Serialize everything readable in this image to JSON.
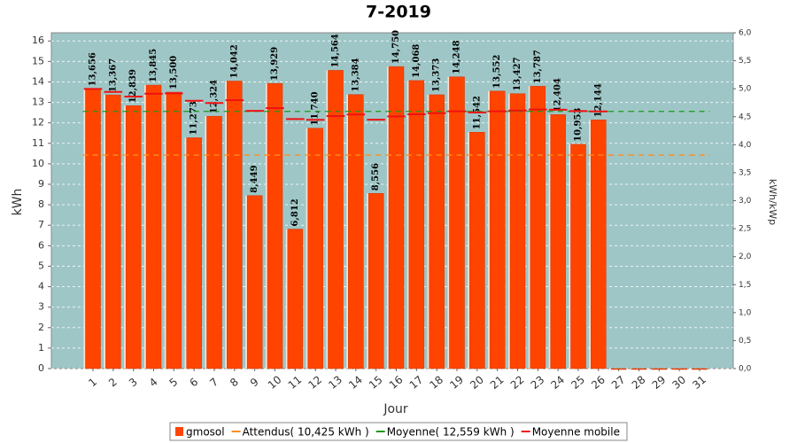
{
  "chart_data": {
    "type": "bar",
    "title": "7-2019",
    "x_label": "Jour",
    "y_label": "kWh",
    "y2_label": "kWh/kWp",
    "categories": [
      "1",
      "2",
      "3",
      "4",
      "5",
      "6",
      "7",
      "8",
      "9",
      "10",
      "11",
      "12",
      "13",
      "14",
      "15",
      "16",
      "17",
      "18",
      "19",
      "20",
      "21",
      "22",
      "23",
      "24",
      "25",
      "26",
      "27",
      "28",
      "29",
      "30",
      "31"
    ],
    "series": [
      {
        "name": "gmosol",
        "type": "bar",
        "color": "#ff4400",
        "values": [
          13.656,
          13.367,
          12.839,
          13.845,
          13.5,
          11.273,
          12.324,
          14.042,
          8.449,
          13.929,
          6.812,
          11.74,
          14.564,
          13.384,
          8.556,
          14.75,
          14.068,
          13.373,
          14.248,
          11.542,
          13.552,
          13.427,
          13.787,
          12.404,
          10.953,
          12.144,
          0,
          0,
          0,
          0,
          0
        ],
        "value_labels": [
          "13,656",
          "13,367",
          "12,839",
          "13,845",
          "13,500",
          "11,273",
          "12,324",
          "14,042",
          "8,449",
          "13,929",
          "6,812",
          "11,740",
          "14,564",
          "13,384",
          "8,556",
          "14,750",
          "14,068",
          "13,373",
          "14,248",
          "11,542",
          "13,552",
          "13,427",
          "13,787",
          "12,404",
          "10,953",
          "12,144",
          null,
          null,
          null,
          null,
          null
        ]
      },
      {
        "name": "Attendus( 10,425 kWh )",
        "type": "dash",
        "color": "#ff8c1a",
        "values": [
          10.425,
          10.425,
          10.425,
          10.425,
          10.425,
          10.425,
          10.425,
          10.425,
          10.425,
          10.425,
          10.425,
          10.425,
          10.425,
          10.425,
          10.425,
          10.425,
          10.425,
          10.425,
          10.425,
          10.425,
          10.425,
          10.425,
          10.425,
          10.425,
          10.425,
          10.425,
          10.425,
          10.425,
          10.425,
          10.425,
          10.425
        ]
      },
      {
        "name": "Moyenne( 12,559 kWh )",
        "type": "dash",
        "color": "#1a9a1a",
        "values": [
          12.559,
          12.559,
          12.559,
          12.559,
          12.559,
          12.559,
          12.559,
          12.559,
          12.559,
          12.559,
          12.559,
          12.559,
          12.559,
          12.559,
          12.559,
          12.559,
          12.559,
          12.559,
          12.559,
          12.559,
          12.559,
          12.559,
          12.559,
          12.559,
          12.559,
          12.559,
          12.559,
          12.559,
          12.559,
          12.559,
          12.559
        ]
      },
      {
        "name": "Moyenne mobile",
        "type": "step",
        "color": "#ee1111",
        "values": [
          13.656,
          13.512,
          13.287,
          13.427,
          13.441,
          13.08,
          12.972,
          13.106,
          12.588,
          12.722,
          12.185,
          12.148,
          12.334,
          12.409,
          12.152,
          12.314,
          12.418,
          12.471,
          12.564,
          12.513,
          12.563,
          12.602,
          12.653,
          12.643,
          12.575,
          12.559,
          null,
          null,
          null,
          null,
          null
        ]
      }
    ],
    "ylim": [
      0,
      16.4
    ],
    "yticks": [
      0,
      1,
      2,
      3,
      4,
      5,
      6,
      7,
      8,
      9,
      10,
      11,
      12,
      13,
      14,
      15,
      16
    ],
    "y2lim": [
      0,
      6
    ],
    "y2ticks": [
      {
        "value": 0,
        "label": "0,0"
      },
      {
        "value": 0.5,
        "label": "0,5"
      },
      {
        "value": 1,
        "label": "1,0"
      },
      {
        "value": 1.5,
        "label": "1,5"
      },
      {
        "value": 2,
        "label": "2,0"
      },
      {
        "value": 2.5,
        "label": "2,5"
      },
      {
        "value": 3,
        "label": "3,0"
      },
      {
        "value": 3.5,
        "label": "3,5"
      },
      {
        "value": 4,
        "label": "4,0"
      },
      {
        "value": 4.5,
        "label": "4,5"
      },
      {
        "value": 5,
        "label": "5,0"
      },
      {
        "value": 5.5,
        "label": "5,5"
      },
      {
        "value": 6,
        "label": "6,0"
      }
    ],
    "grid": true,
    "legend": "bottom",
    "background": "#9fc6c6"
  }
}
